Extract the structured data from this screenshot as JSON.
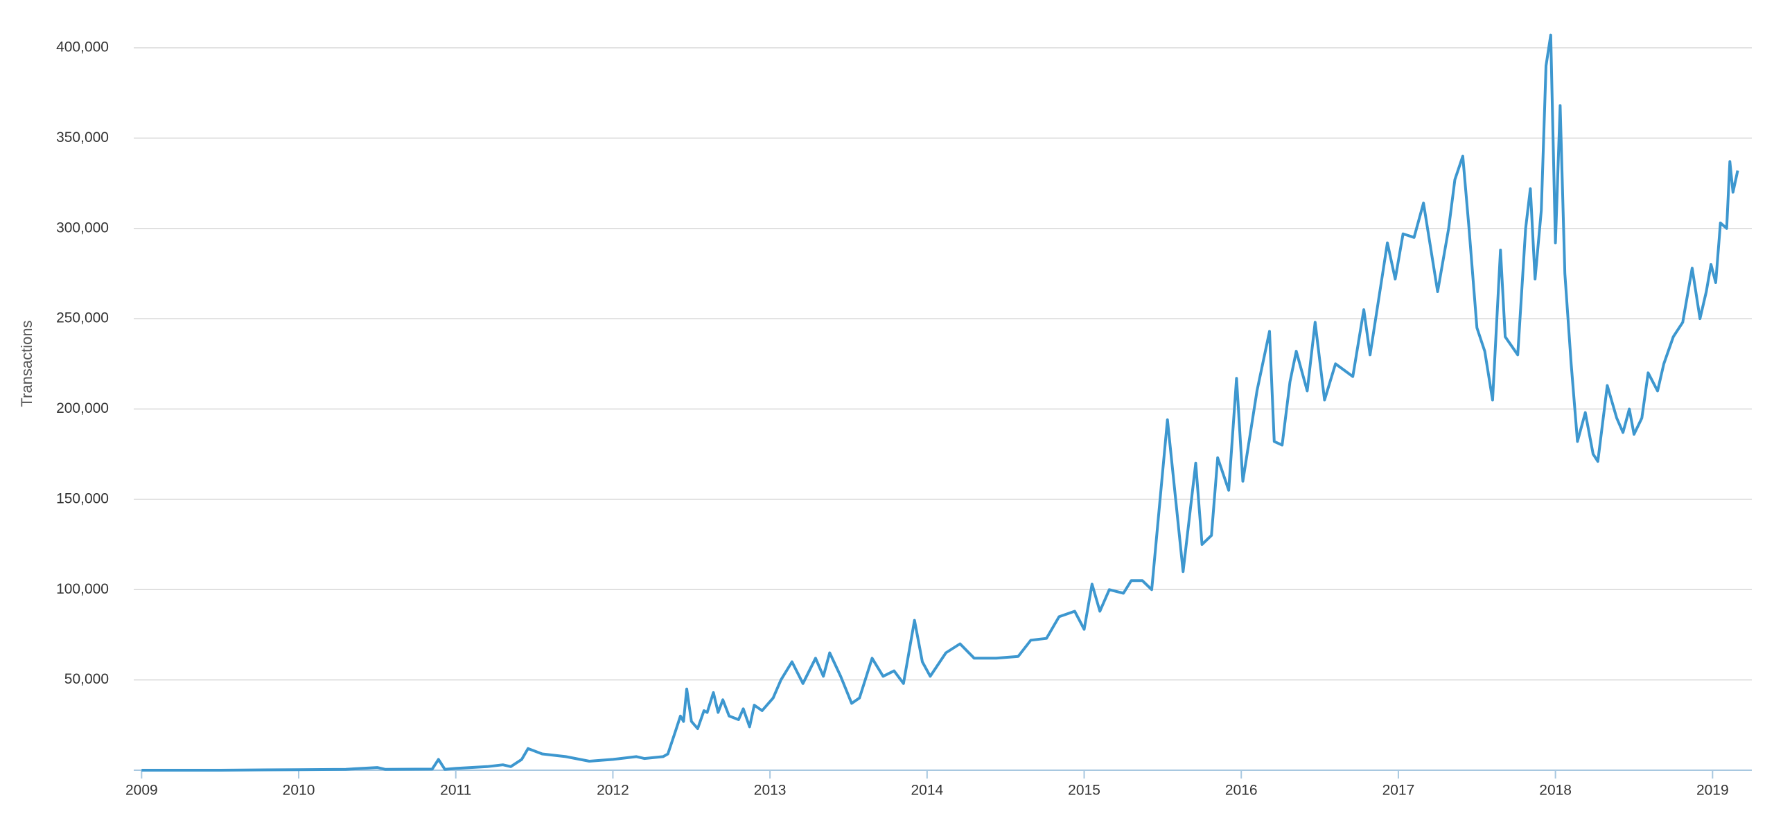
{
  "chart_data": {
    "type": "line",
    "y_label": "Transactions",
    "x": [
      2009.0,
      2009.5,
      2010.0,
      2010.3,
      2010.5,
      2010.55,
      2010.85,
      2010.89,
      2010.93,
      2011.0,
      2011.2,
      2011.3,
      2011.35,
      2011.42,
      2011.46,
      2011.55,
      2011.7,
      2011.85,
      2012.0,
      2012.15,
      2012.2,
      2012.32,
      2012.35,
      2012.4,
      2012.43,
      2012.45,
      2012.47,
      2012.5,
      2012.54,
      2012.58,
      2012.6,
      2012.64,
      2012.67,
      2012.7,
      2012.74,
      2012.8,
      2012.83,
      2012.87,
      2012.9,
      2012.95,
      2013.02,
      2013.07,
      2013.14,
      2013.21,
      2013.29,
      2013.34,
      2013.38,
      2013.45,
      2013.52,
      2013.57,
      2013.65,
      2013.72,
      2013.79,
      2013.85,
      2013.92,
      2013.97,
      2014.02,
      2014.12,
      2014.21,
      2014.3,
      2014.44,
      2014.58,
      2014.66,
      2014.76,
      2014.84,
      2014.94,
      2015.0,
      2015.05,
      2015.1,
      2015.16,
      2015.25,
      2015.3,
      2015.37,
      2015.43,
      2015.53,
      2015.63,
      2015.71,
      2015.75,
      2015.81,
      2015.85,
      2015.92,
      2015.97,
      2016.01,
      2016.1,
      2016.18,
      2016.21,
      2016.26,
      2016.31,
      2016.35,
      2016.42,
      2016.47,
      2016.53,
      2016.6,
      2016.71,
      2016.78,
      2016.82,
      2016.93,
      2016.98,
      2017.03,
      2017.1,
      2017.16,
      2017.25,
      2017.32,
      2017.36,
      2017.41,
      2017.45,
      2017.5,
      2017.55,
      2017.6,
      2017.65,
      2017.68,
      2017.76,
      2017.81,
      2017.84,
      2017.87,
      2017.91,
      2017.94,
      2017.97,
      2018.0,
      2018.03,
      2018.06,
      2018.1,
      2018.14,
      2018.19,
      2018.24,
      2018.27,
      2018.33,
      2018.39,
      2018.43,
      2018.47,
      2018.5,
      2018.55,
      2018.59,
      2018.65,
      2018.69,
      2018.75,
      2018.81,
      2018.87,
      2018.92,
      2018.96,
      2018.99,
      2019.02,
      2019.05,
      2019.09,
      2019.11,
      2019.13,
      2019.16
    ],
    "series": [
      {
        "name": "Transactions",
        "color": "#3d97cf",
        "values": [
          0,
          0,
          300,
          500,
          1500,
          500,
          600,
          6000,
          500,
          1000,
          2000,
          3000,
          2000,
          6000,
          12000,
          9000,
          7500,
          5000,
          6000,
          7500,
          6500,
          7500,
          9000,
          22000,
          30000,
          27000,
          45000,
          27000,
          23000,
          33000,
          32000,
          43000,
          32000,
          39000,
          30000,
          28000,
          34000,
          24000,
          36000,
          33000,
          40000,
          50000,
          60000,
          48000,
          62000,
          52000,
          65000,
          52000,
          37000,
          40000,
          62000,
          52000,
          55000,
          48000,
          83000,
          60000,
          52000,
          65000,
          70000,
          62000,
          62000,
          63000,
          72000,
          73000,
          85000,
          88000,
          78000,
          103000,
          88000,
          100000,
          98000,
          105000,
          105000,
          100000,
          194000,
          110000,
          170000,
          125000,
          130000,
          173000,
          155000,
          217000,
          160000,
          210000,
          243000,
          182000,
          180000,
          215000,
          232000,
          210000,
          248000,
          205000,
          225000,
          218000,
          255000,
          230000,
          292000,
          272000,
          297000,
          295000,
          314000,
          265000,
          300000,
          327000,
          340000,
          300000,
          245000,
          232000,
          205000,
          288000,
          240000,
          230000,
          300000,
          322000,
          272000,
          310000,
          390000,
          407000,
          292000,
          368000,
          275000,
          225000,
          182000,
          198000,
          175000,
          171000,
          213000,
          195000,
          187000,
          200000,
          186000,
          195000,
          220000,
          210000,
          225000,
          240000,
          248000,
          278000,
          250000,
          265000,
          280000,
          270000,
          303000,
          300000,
          337000,
          320000,
          332000
        ]
      }
    ],
    "xlim": [
      2008.95,
      2019.25
    ],
    "xticks": [
      2009,
      2010,
      2011,
      2012,
      2013,
      2014,
      2015,
      2016,
      2017,
      2018,
      2019
    ],
    "ylim": [
      0,
      400000
    ],
    "yticks": [
      {
        "value": 50000,
        "label": "50,000"
      },
      {
        "value": 100000,
        "label": "100,000"
      },
      {
        "value": 150000,
        "label": "150,000"
      },
      {
        "value": 200000,
        "label": "200,000"
      },
      {
        "value": 250000,
        "label": "250,000"
      },
      {
        "value": 300000,
        "label": "300,000"
      },
      {
        "value": 350000,
        "label": "350,000"
      },
      {
        "value": 400000,
        "label": "400,000"
      }
    ],
    "grid": true
  }
}
